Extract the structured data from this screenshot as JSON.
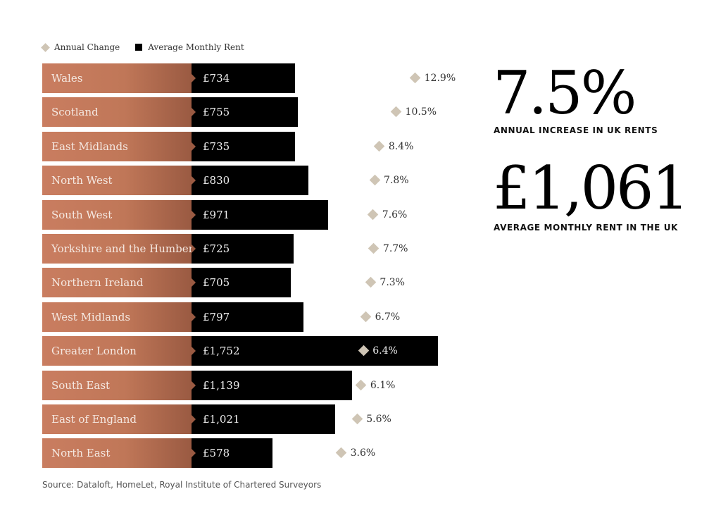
{
  "chart_data": {
    "type": "bar",
    "legend": [
      {
        "name": "Annual Change",
        "marker": "diamond",
        "color": "#cfc5b5"
      },
      {
        "name": "Average Monthly Rent",
        "marker": "square",
        "color": "#000000"
      }
    ],
    "legend_placement": "top-left",
    "categories": [
      "Wales",
      "Scotland",
      "East Midlands",
      "North West",
      "South West",
      "Yorkshire and the Humber",
      "Northern Ireland",
      "West Midlands",
      "Greater London",
      "South East",
      "East of England",
      "North East"
    ],
    "series": [
      {
        "name": "Average Monthly Rent",
        "values": [
          734,
          755,
          735,
          830,
          971,
          725,
          705,
          797,
          1752,
          1139,
          1021,
          578
        ],
        "labels": [
          "£734",
          "£755",
          "£735",
          "£830",
          "£971",
          "£725",
          "£705",
          "£797",
          "£1,752",
          "£1,139",
          "£1,021",
          "£578"
        ]
      },
      {
        "name": "Annual Change",
        "values": [
          12.9,
          10.5,
          8.4,
          7.8,
          7.6,
          7.7,
          7.3,
          6.7,
          6.4,
          6.1,
          5.6,
          3.6
        ],
        "labels": [
          "12.9%",
          "10.5%",
          "8.4%",
          "7.8%",
          "7.6%",
          "7.7%",
          "7.3%",
          "6.7%",
          "6.4%",
          "6.1%",
          "5.6%",
          "3.6%"
        ]
      }
    ],
    "label_gradient": [
      "#c97d60",
      "#9a5a42"
    ]
  },
  "stats": [
    {
      "value": "7.5%",
      "caption": "ANNUAL INCREASE IN UK RENTS"
    },
    {
      "value": "£1,061",
      "caption": "AVERAGE MONTHLY RENT IN THE UK"
    }
  ],
  "source": "Source: Dataloft, HomeLet, Royal Institute of Chartered Surveyors"
}
